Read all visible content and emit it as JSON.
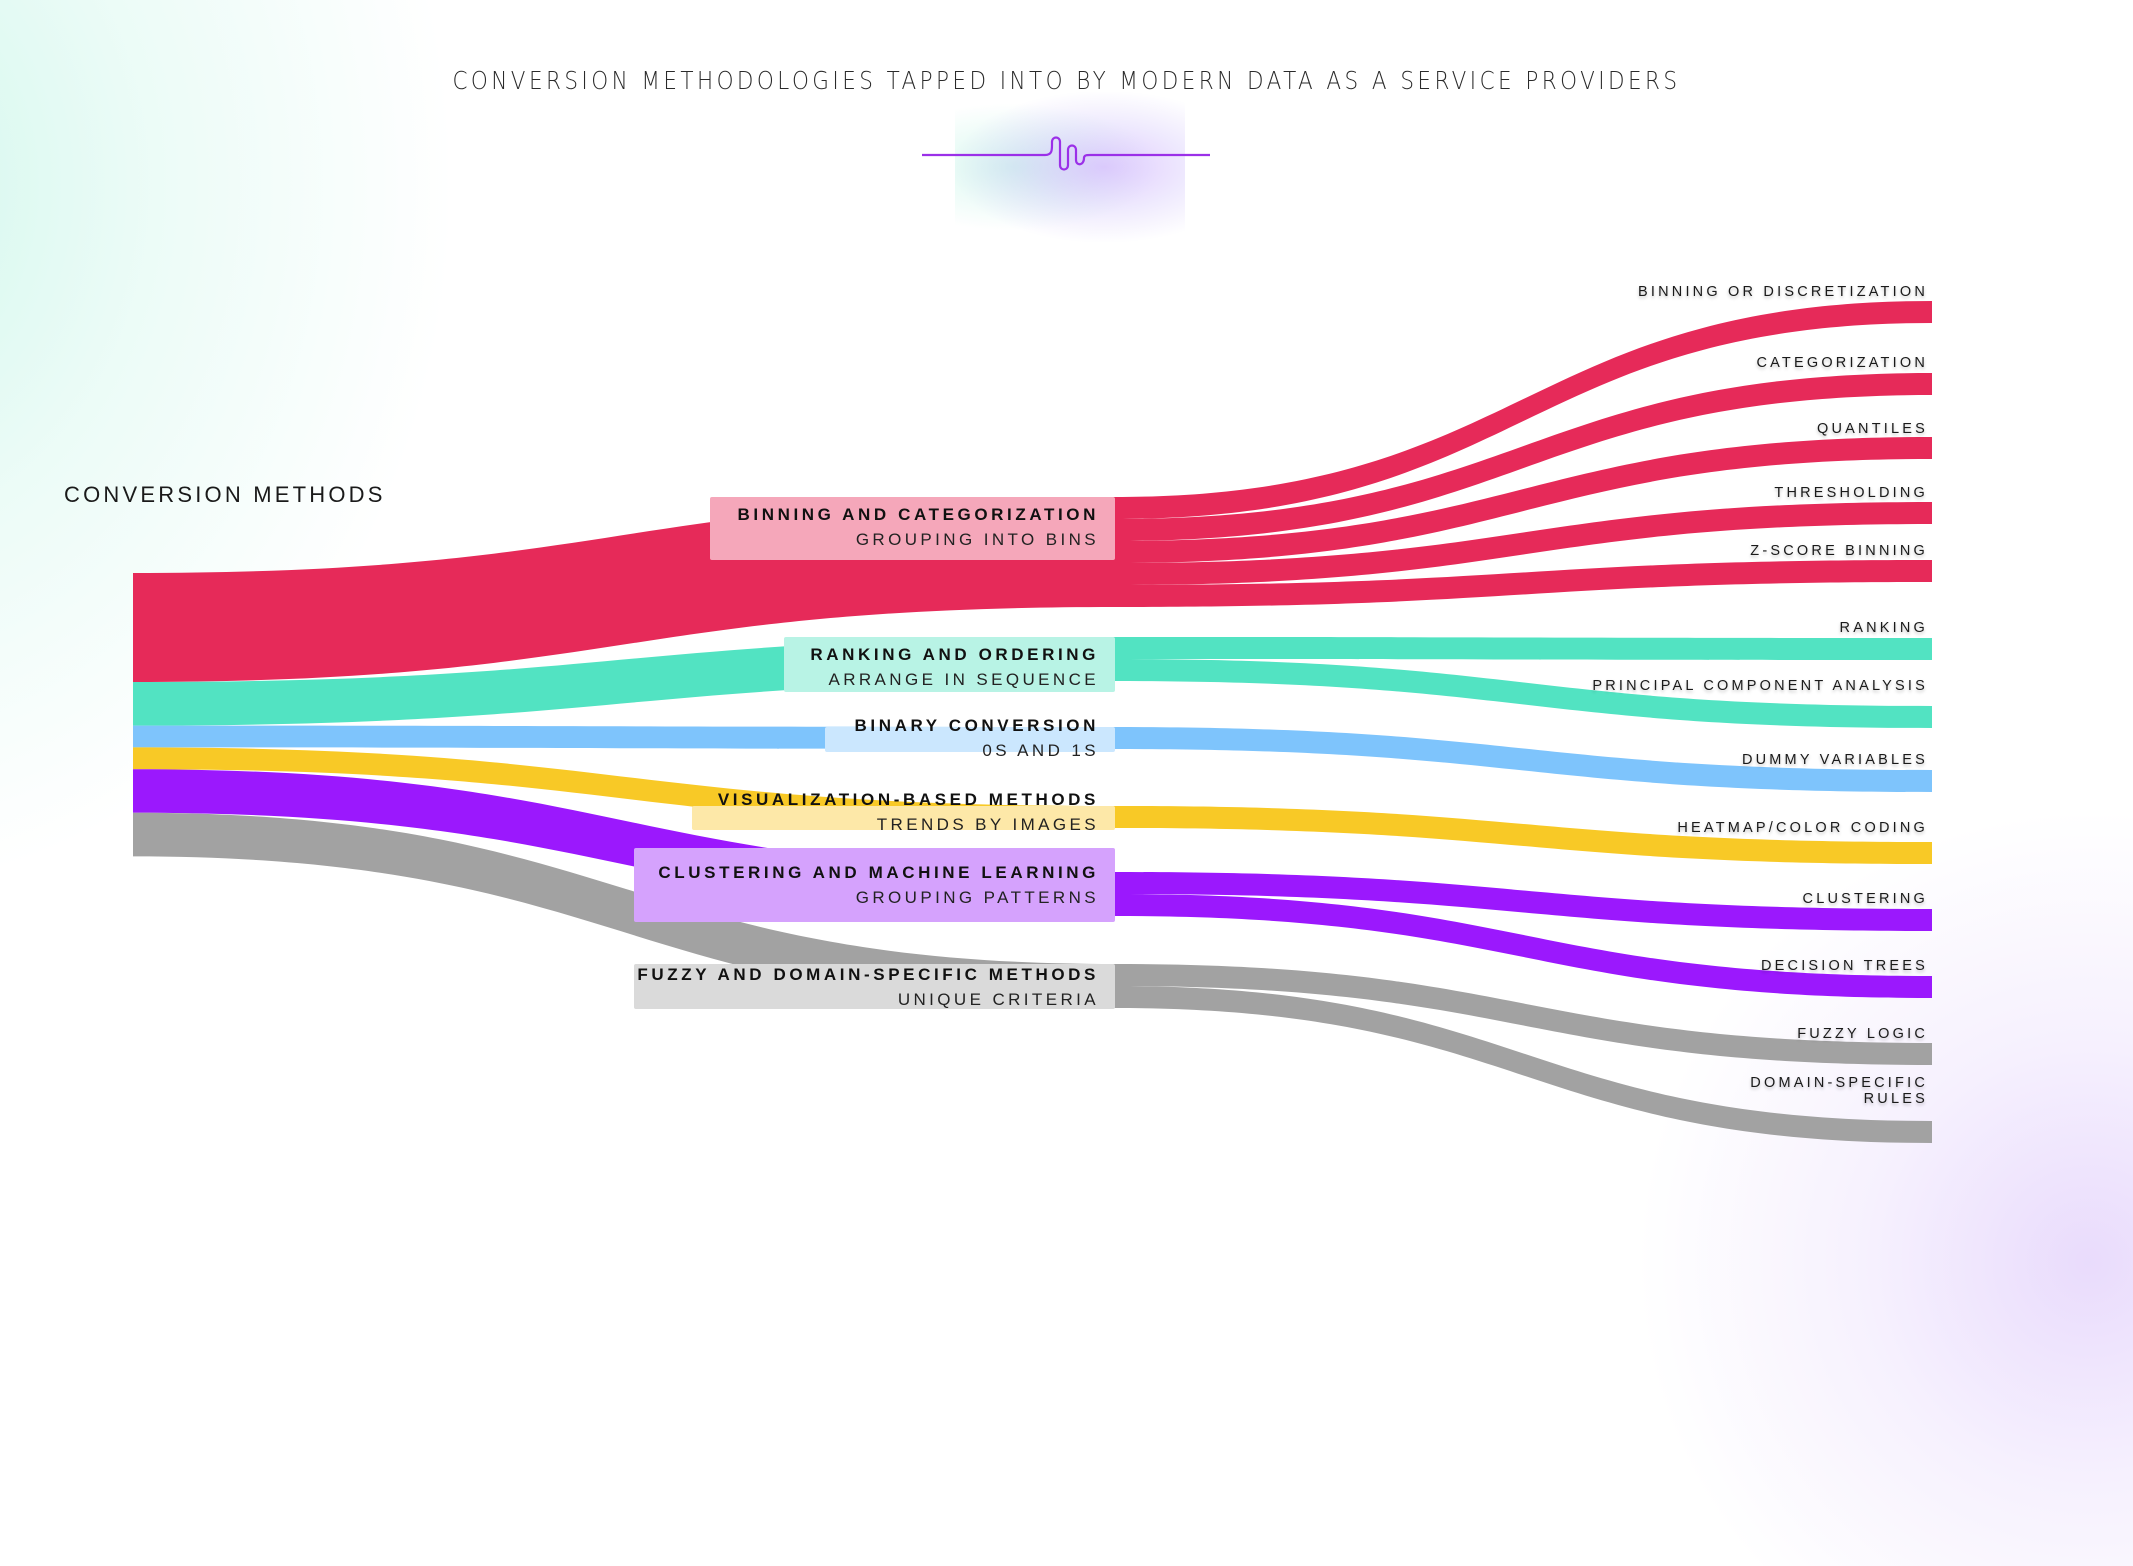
{
  "chart_data": {
    "type": "sankey",
    "title": "CONVERSION METHODOLOGIES TAPPED INTO BY MODERN DATA AS A SERVICE PROVIDERS",
    "source": {
      "name": "CONVERSION METHODS"
    },
    "categories": [
      {
        "name": "BINNING AND CATEGORIZATION",
        "subtitle": "GROUPING INTO BINS",
        "color": "#E62A59",
        "label_bg": "#F5A7BA",
        "value": 5,
        "leaves": [
          {
            "name": "BINNING OR DISCRETIZATION",
            "value": 1
          },
          {
            "name": "CATEGORIZATION",
            "value": 1
          },
          {
            "name": "QUANTILES",
            "value": 1
          },
          {
            "name": "THRESHOLDING",
            "value": 1
          },
          {
            "name": "Z-SCORE BINNING",
            "value": 1
          }
        ]
      },
      {
        "name": "RANKING AND ORDERING",
        "subtitle": "ARRANGE IN SEQUENCE",
        "color": "#52E3C2",
        "label_bg": "#B8F3E5",
        "value": 2,
        "leaves": [
          {
            "name": "RANKING",
            "value": 1
          },
          {
            "name": "PRINCIPAL COMPONENT ANALYSIS",
            "value": 1
          }
        ]
      },
      {
        "name": "BINARY CONVERSION",
        "subtitle": "0S AND 1S",
        "color": "#7EC4FC",
        "label_bg": "#CBE7FE",
        "value": 1,
        "leaves": [
          {
            "name": "DUMMY VARIABLES",
            "value": 1
          }
        ]
      },
      {
        "name": "VISUALIZATION-BASED METHODS",
        "subtitle": "TRENDS BY IMAGES",
        "color": "#F8C926",
        "label_bg": "#FDE8A8",
        "value": 1,
        "leaves": [
          {
            "name": "HEATMAP/COLOR CODING",
            "value": 1
          }
        ]
      },
      {
        "name": "CLUSTERING AND MACHINE LEARNING",
        "subtitle": "GROUPING PATTERNS",
        "color": "#9B18FD",
        "label_bg": "#D5A2FD",
        "value": 2,
        "leaves": [
          {
            "name": "CLUSTERING",
            "value": 1
          },
          {
            "name": "DECISION TREES",
            "value": 1
          }
        ]
      },
      {
        "name": "FUZZY AND DOMAIN-SPECIFIC METHODS",
        "subtitle": "UNIQUE CRITERIA",
        "color": "#A2A2A2",
        "label_bg": "#DADADA",
        "value": 2,
        "leaves": [
          {
            "name": "FUZZY LOGIC",
            "value": 1
          },
          {
            "name": "DOMAIN-SPECIFIC RULES",
            "value": 1
          }
        ]
      }
    ]
  },
  "decor": {
    "divider_color": "#9B30E8"
  }
}
